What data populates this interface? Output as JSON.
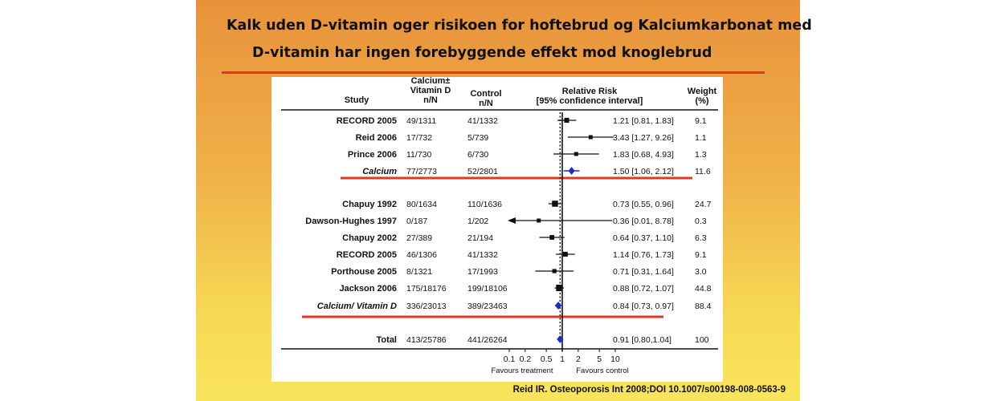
{
  "title": {
    "line1": "Kalk uden D-vitamin oger risikoen for hoftebrud og Kalciumkarbonat  med",
    "line2": "D-vitamin har ingen forebyggende effekt mod knoglebrud"
  },
  "citation": "Reid IR. Osteoporosis Int 2008;DOI 10.1007/s00198-008-0563-9",
  "colors": {
    "accent_red": "#e8351f",
    "diamond_blue": "#1f28c8"
  },
  "chart_data": {
    "type": "forest",
    "scale": "log",
    "headers": {
      "study": "Study",
      "calcium": [
        "Calcium±",
        "Vitamin D",
        "n/N"
      ],
      "control": [
        "Control",
        "n/N"
      ],
      "rr": [
        "Relative Risk",
        "[95% confidence interval]"
      ],
      "weight": [
        "Weight",
        "(%)"
      ]
    },
    "x_ticks": [
      0.1,
      0.2,
      0.5,
      1,
      2,
      5,
      10
    ],
    "x_tick_labels": [
      "0.1",
      "0.2",
      "0.5",
      "1",
      "2",
      "5",
      "10"
    ],
    "xlim": [
      0.1,
      10
    ],
    "favours_left": "Favours treatment",
    "favours_right": "Favours control",
    "rows": [
      {
        "study": "RECORD 2005",
        "calcium": "49/1311",
        "control": "41/1332",
        "rr": 1.21,
        "lo": 0.81,
        "hi": 1.83,
        "rr_text": "1.21 [0.81, 1.83]",
        "weight": "9.1",
        "kind": "study"
      },
      {
        "study": "Reid 2006",
        "calcium": "17/732",
        "control": "5/739",
        "rr": 3.43,
        "lo": 1.27,
        "hi": 9.26,
        "rr_text": "3.43 [1.27, 9.26]",
        "weight": "1.1",
        "kind": "study"
      },
      {
        "study": "Prince 2006",
        "calcium": "11/730",
        "control": "6/730",
        "rr": 1.83,
        "lo": 0.68,
        "hi": 4.93,
        "rr_text": "1.83 [0.68, 4.93]",
        "weight": "1.3",
        "kind": "study"
      },
      {
        "study": "Calcium",
        "calcium": "77/2773",
        "control": "52/2801",
        "rr": 1.5,
        "lo": 1.06,
        "hi": 2.12,
        "rr_text": "1.50 [1.06, 2.12]",
        "weight": "11.6",
        "kind": "subtotal"
      },
      {
        "study": "Chapuy 1992",
        "calcium": "80/1634",
        "control": "110/1636",
        "rr": 0.73,
        "lo": 0.55,
        "hi": 0.96,
        "rr_text": "0.73 [0.55, 0.96]",
        "weight": "24.7",
        "kind": "study"
      },
      {
        "study": "Dawson-Hughes 1997",
        "calcium": "0/187",
        "control": "1/202",
        "rr": 0.36,
        "lo": 0.01,
        "hi": 8.78,
        "rr_text": "0.36 [0.01, 8.78]",
        "weight": "0.3",
        "kind": "study"
      },
      {
        "study": "Chapuy 2002",
        "calcium": "27/389",
        "control": "21/194",
        "rr": 0.64,
        "lo": 0.37,
        "hi": 1.1,
        "rr_text": "0.64 [0.37, 1.10]",
        "weight": "6.3",
        "kind": "study"
      },
      {
        "study": "RECORD 2005",
        "calcium": "46/1306",
        "control": "41/1332",
        "rr": 1.14,
        "lo": 0.76,
        "hi": 1.73,
        "rr_text": "1.14 [0.76, 1.73]",
        "weight": "9.1",
        "kind": "study"
      },
      {
        "study": "Porthouse 2005",
        "calcium": "8/1321",
        "control": "17/1993",
        "rr": 0.71,
        "lo": 0.31,
        "hi": 1.64,
        "rr_text": "0.71 [0.31, 1.64]",
        "weight": "3.0",
        "kind": "study"
      },
      {
        "study": "Jackson 2006",
        "calcium": "175/18176",
        "control": "199/18106",
        "rr": 0.88,
        "lo": 0.72,
        "hi": 1.07,
        "rr_text": "0.88 [0.72, 1.07]",
        "weight": "44.8",
        "kind": "study"
      },
      {
        "study": "Calcium/ Vitamin D",
        "calcium": "336/23013",
        "control": "389/23463",
        "rr": 0.84,
        "lo": 0.73,
        "hi": 0.97,
        "rr_text": "0.84 [0.73, 0.97]",
        "weight": "88.4",
        "kind": "subtotal"
      },
      {
        "study": "Total",
        "calcium": "413/25786",
        "control": "441/26264",
        "rr": 0.91,
        "lo": 0.8,
        "hi": 1.04,
        "rr_text": "0.91 [0.80,1.04]",
        "weight": "100",
        "kind": "total"
      }
    ]
  }
}
